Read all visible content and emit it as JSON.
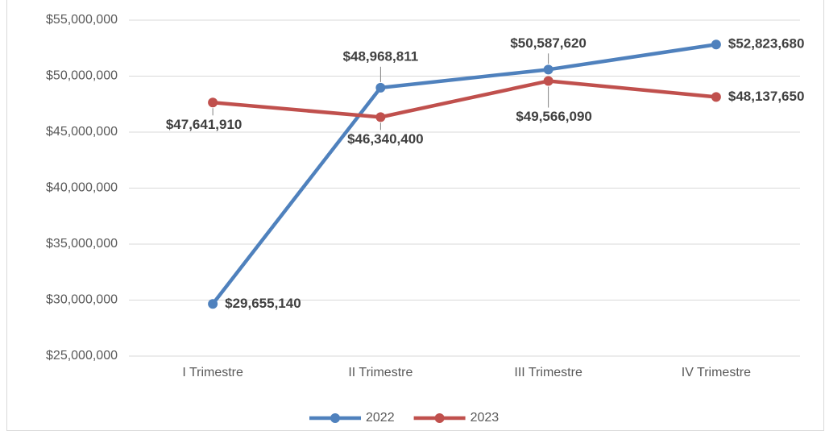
{
  "chart_data": {
    "type": "line",
    "categories": [
      "I Trimestre",
      "II Trimestre",
      "III Trimestre",
      "IV Trimestre"
    ],
    "series": [
      {
        "name": "2022",
        "color": "#4f81bd",
        "values": [
          29655140,
          48968811,
          50587620,
          52823680
        ],
        "value_labels": [
          "$29,655,140",
          "$48,968,811",
          "$50,587,620",
          "$52,823,680"
        ]
      },
      {
        "name": "2023",
        "color": "#c0504d",
        "values": [
          47641910,
          46340400,
          49566090,
          48137650
        ],
        "value_labels": [
          "$47,641,910",
          "$46,340,400",
          "$49,566,090",
          "$48,137,650"
        ]
      }
    ],
    "ylim": [
      25000000,
      55000000
    ],
    "yticks": [
      {
        "value": 25000000,
        "label": "$25,000,000"
      },
      {
        "value": 30000000,
        "label": "$30,000,000"
      },
      {
        "value": 35000000,
        "label": "$35,000,000"
      },
      {
        "value": 40000000,
        "label": "$40,000,000"
      },
      {
        "value": 45000000,
        "label": "$45,000,000"
      },
      {
        "value": 50000000,
        "label": "$50,000,000"
      },
      {
        "value": 55000000,
        "label": "$55,000,000"
      }
    ],
    "grid": true,
    "legend": "bottom"
  }
}
